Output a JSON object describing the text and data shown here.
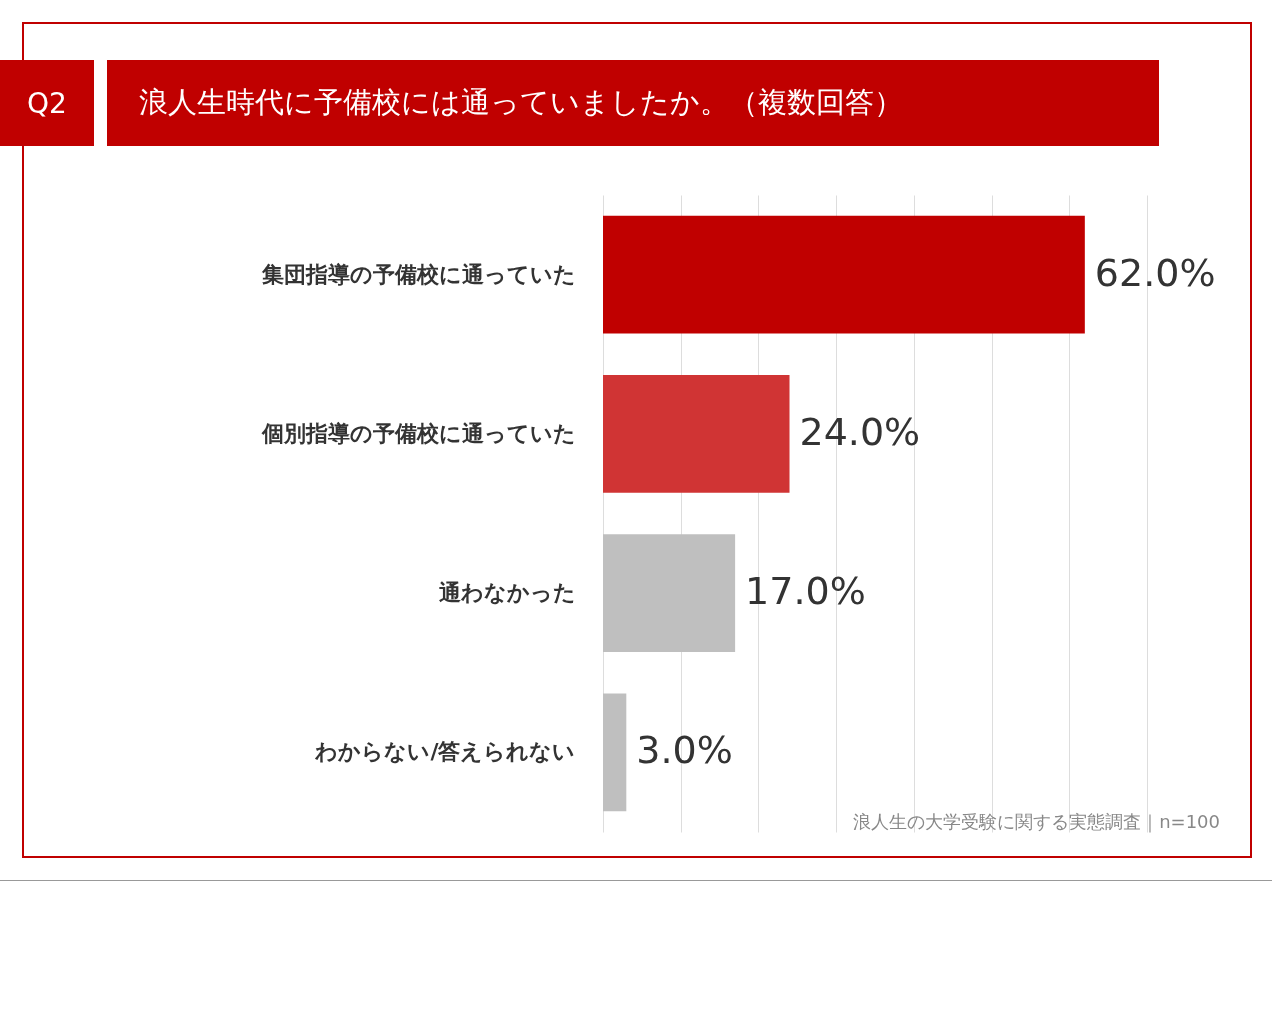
{
  "chart_data": {
    "type": "bar",
    "orientation": "horizontal",
    "subtitle": "Q2",
    "title": "浪人生時代に予備校には通っていましたか。（複数回答）",
    "categories": [
      "集団指導の予備校に通っていた",
      "個別指導の予備校に通っていた",
      "通わなかった",
      "わからない/答えられない"
    ],
    "values": [
      62,
      24,
      17,
      3
    ],
    "colors": [
      "#c00000",
      "#d03434",
      "#bfbfbf",
      "#bfbfbf"
    ],
    "value_labels": [
      "62.0%",
      "24.0%",
      "17.0%",
      "3.0%"
    ],
    "xlim": [
      0,
      70
    ],
    "xticks": [
      {
        "value": 0,
        "label": null
      },
      {
        "value": 10,
        "label": null
      },
      {
        "value": 20,
        "label": null
      },
      {
        "value": 30,
        "label": null
      },
      {
        "value": 40,
        "label": null
      },
      {
        "value": 50,
        "label": null
      },
      {
        "value": 60,
        "label": null
      },
      {
        "value": 70,
        "label": null
      }
    ],
    "grid": "x",
    "tick_labels": "y",
    "annotations": [
      "浪人生の大学受験に関する実態調査｜n=100"
    ]
  }
}
